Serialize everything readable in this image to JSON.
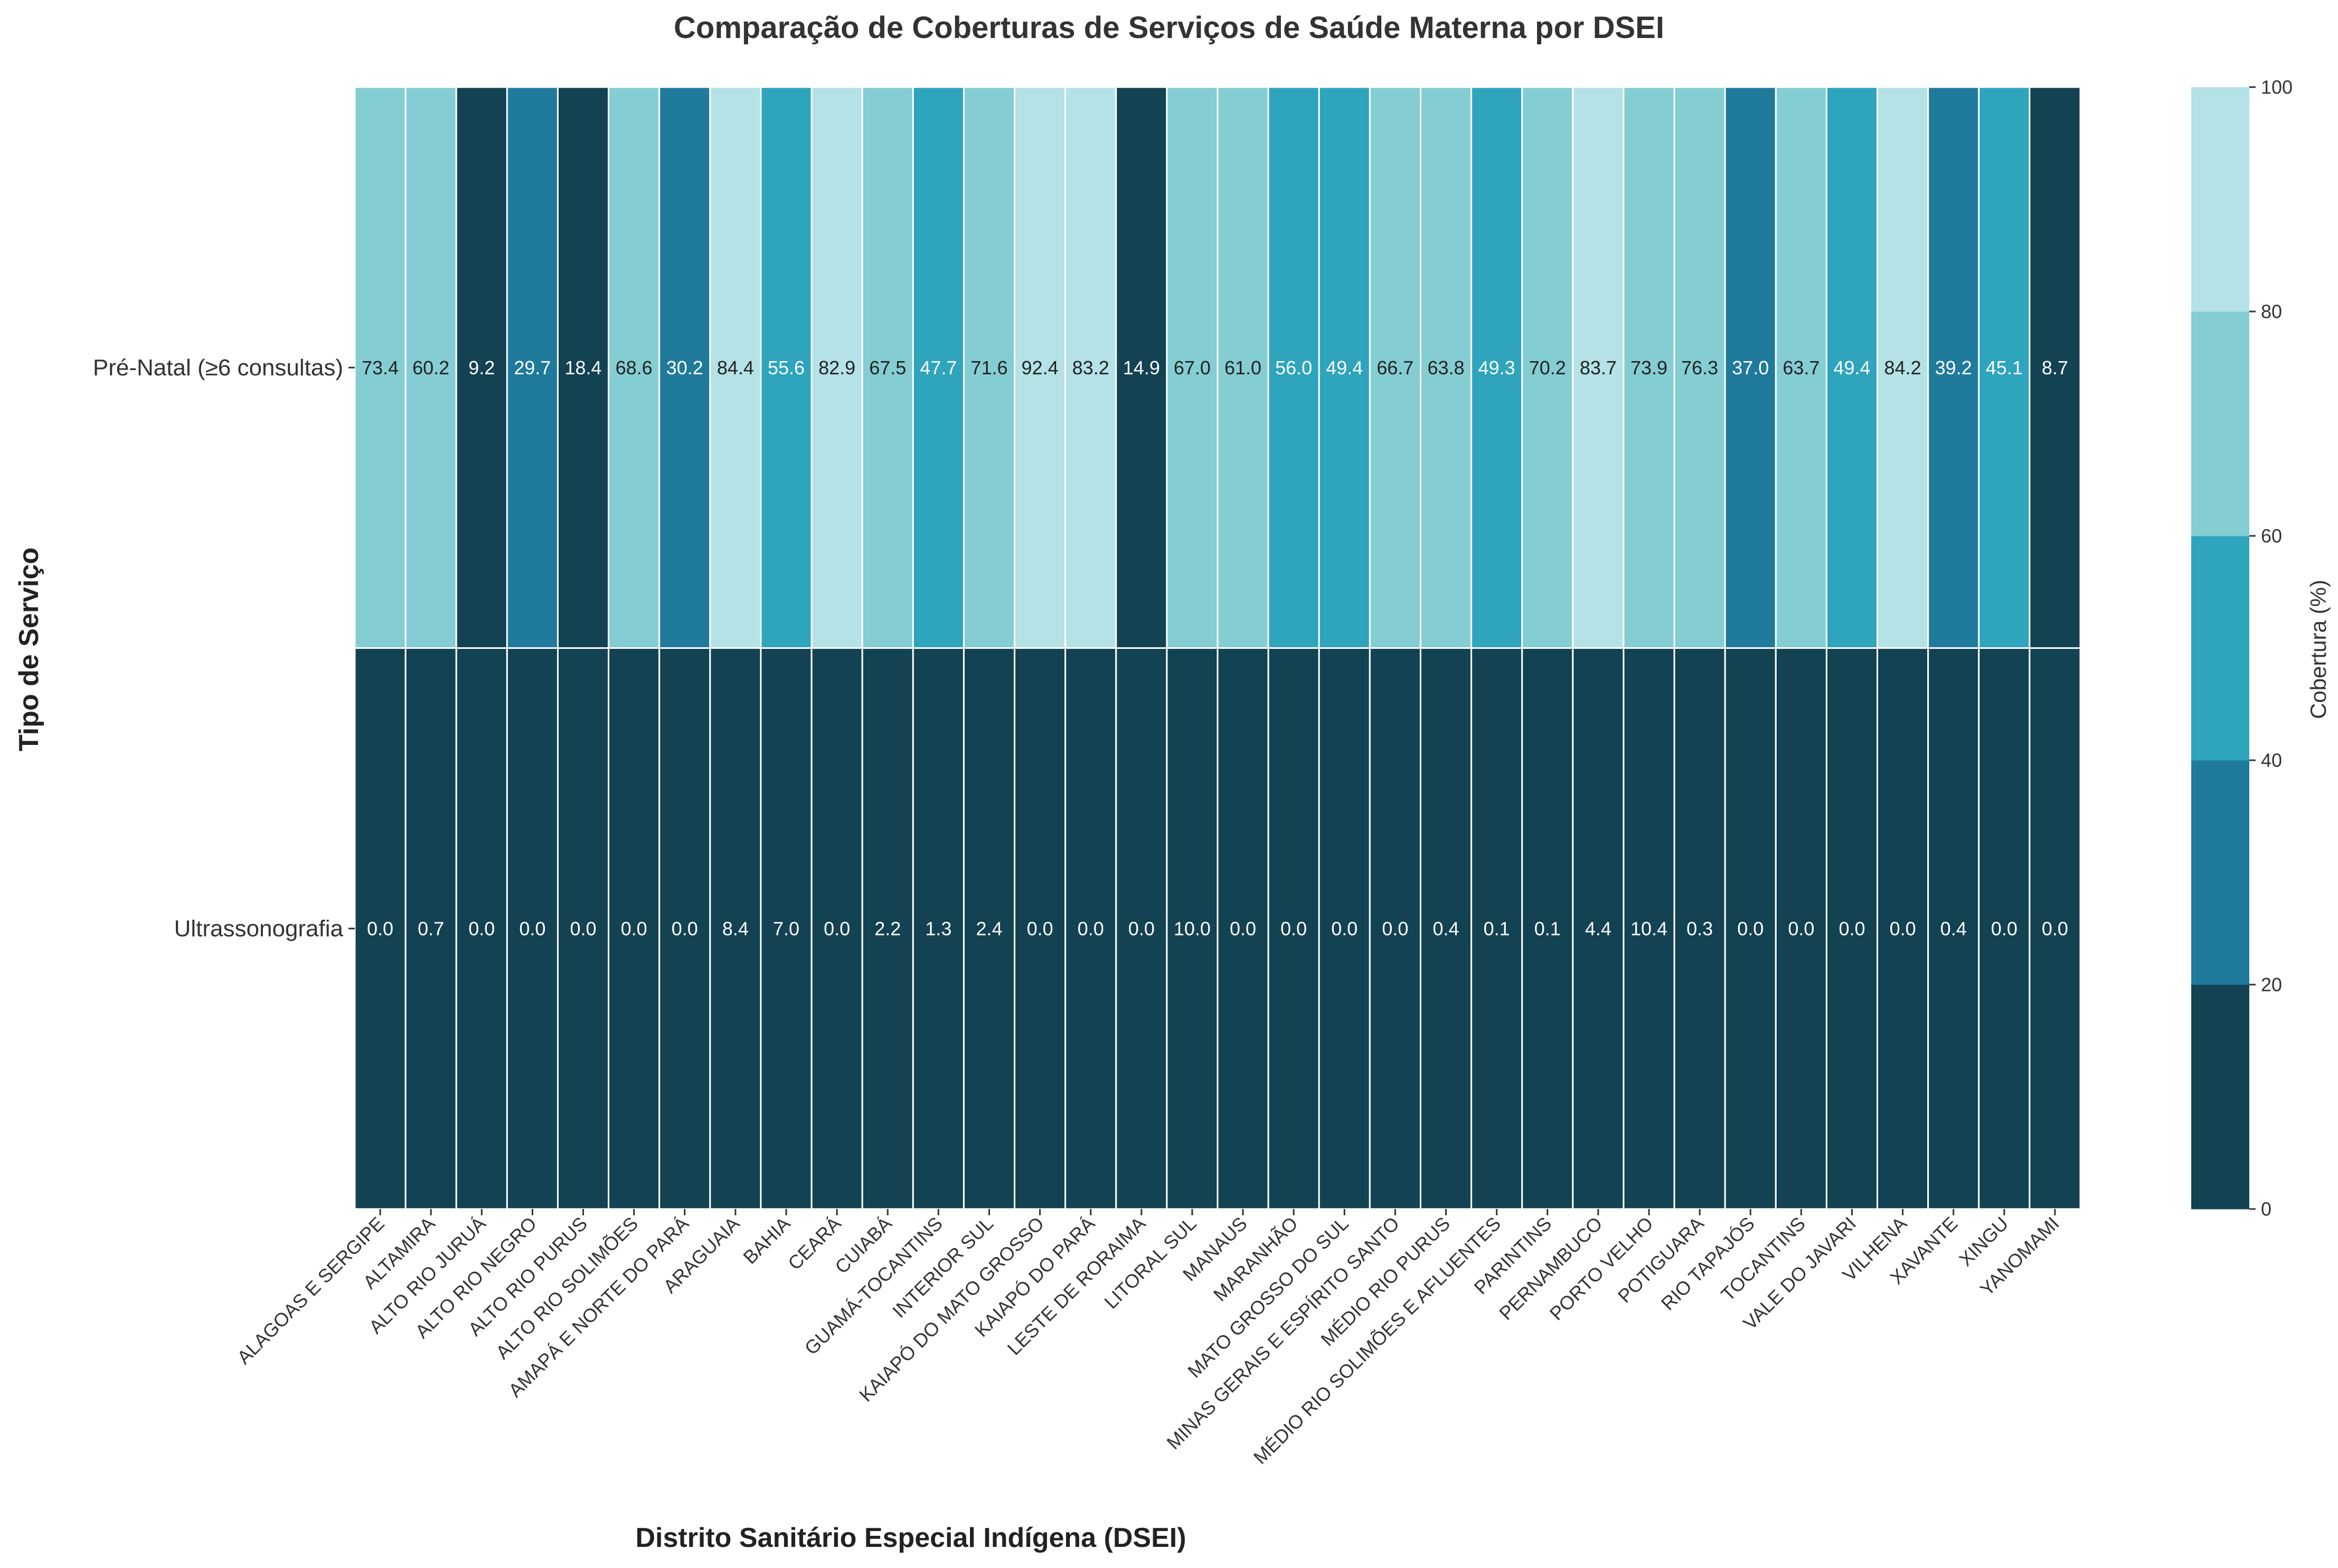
{
  "chart_data": {
    "type": "heatmap",
    "title": "Comparação de Coberturas de Serviços de Saúde Materna por DSEI",
    "xlabel": "Distrito Sanitário Especial Indígena (DSEI)",
    "ylabel": "Tipo de Serviço",
    "colorbar_label": "Cobertura (%)",
    "colorbar_ticks": [
      "0",
      "20",
      "40",
      "60",
      "80",
      "100"
    ],
    "vmin": 0,
    "vmax": 100,
    "color_bins": [
      "#134252",
      "#1f7a9b",
      "#2ea4bd",
      "#84cdd3",
      "#b4e2e6"
    ],
    "rows": [
      "Pré-Natal (≥6 consultas)",
      "Ultrassonografia"
    ],
    "columns": [
      "ALAGOAS E SERGIPE",
      "ALTAMIRA",
      "ALTO RIO JURUÁ",
      "ALTO RIO NEGRO",
      "ALTO RIO PURUS",
      "ALTO RIO SOLIMÕES",
      "AMAPÁ E NORTE DO PARÁ",
      "ARAGUAIA",
      "BAHIA",
      "CEARÁ",
      "CUIABÁ",
      "GUAMÁ-TOCANTINS",
      "INTERIOR SUL",
      "KAIAPÓ DO MATO GROSSO",
      "KAIAPÓ DO PARÁ",
      "LESTE DE RORAIMA",
      "LITORAL SUL",
      "MANAUS",
      "MARANHÃO",
      "MATO GROSSO DO SUL",
      "MINAS GERAIS E ESPÍRITO SANTO",
      "MÉDIO RIO PURUS",
      "MÉDIO RIO SOLIMÕES E AFLUENTES",
      "PARINTINS",
      "PERNAMBUCO",
      "PORTO VELHO",
      "POTIGUARA",
      "RIO TAPAJÓS",
      "TOCANTINS",
      "VALE DO JAVARI",
      "VILHENA",
      "XAVANTE",
      "XINGU",
      "YANOMAMI"
    ],
    "values": [
      [
        73.4,
        60.2,
        9.2,
        29.7,
        18.4,
        68.6,
        30.2,
        84.4,
        55.6,
        82.9,
        67.5,
        47.7,
        71.6,
        92.4,
        83.2,
        14.9,
        67.0,
        61.0,
        56.0,
        49.4,
        66.7,
        63.8,
        49.3,
        70.2,
        83.7,
        73.9,
        76.3,
        37.0,
        63.7,
        49.4,
        84.2,
        39.2,
        45.1,
        8.7
      ],
      [
        0.0,
        0.7,
        0.0,
        0.0,
        0.0,
        0.0,
        0.0,
        8.4,
        7.0,
        0.0,
        2.2,
        1.3,
        2.4,
        0.0,
        0.0,
        0.0,
        10.0,
        0.0,
        0.0,
        0.0,
        0.0,
        0.4,
        0.1,
        0.1,
        4.4,
        10.4,
        0.3,
        0.0,
        0.0,
        0.0,
        0.0,
        0.4,
        0.0,
        0.0
      ]
    ]
  }
}
